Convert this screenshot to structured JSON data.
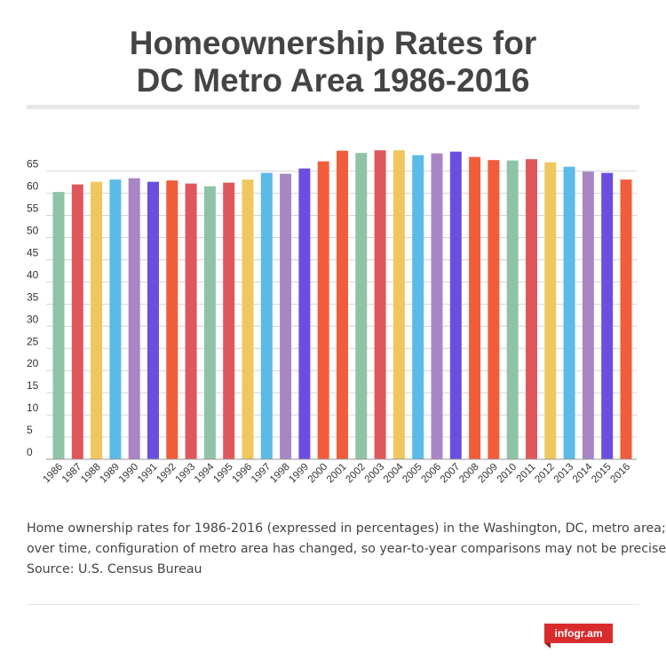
{
  "header": {
    "title_line1": "Homeownership Rates for",
    "title_line2": "DC Metro Area 1986-2016"
  },
  "chart_data": {
    "type": "bar",
    "title": "Homeownership Rates for DC Metro Area 1986-2016",
    "xlabel": "",
    "ylabel": "",
    "ylim": [
      0,
      70
    ],
    "yticks": [
      0,
      5,
      10,
      15,
      20,
      25,
      30,
      35,
      40,
      45,
      50,
      55,
      60,
      65
    ],
    "grid": true,
    "legend": "none",
    "categories": [
      "1986",
      "1987",
      "1988",
      "1989",
      "1990",
      "1991",
      "1992",
      "1993",
      "1994",
      "1995",
      "1996",
      "1997",
      "1998",
      "1999",
      "2000",
      "2001",
      "2002",
      "2003",
      "2004",
      "2005",
      "2006",
      "2007",
      "2008",
      "2009",
      "2010",
      "2011",
      "2012",
      "2013",
      "2014",
      "2015",
      "2016"
    ],
    "values": [
      60.3,
      62.0,
      62.6,
      63.1,
      63.4,
      62.6,
      62.9,
      62.2,
      61.6,
      62.4,
      63.1,
      64.6,
      64.4,
      65.6,
      67.2,
      69.6,
      69.1,
      69.7,
      69.7,
      68.6,
      69.0,
      69.4,
      68.2,
      67.5,
      67.4,
      67.7,
      67.0,
      66.0,
      64.9,
      64.6,
      63.1
    ],
    "colors": [
      "#8ec3a7",
      "#e0575b",
      "#efc75e",
      "#5bbae6",
      "#a886c3",
      "#6b4ee0",
      "#f15d3b",
      "#e0575b",
      "#8ec3a7",
      "#e0575b",
      "#efc75e",
      "#5bbae6",
      "#a886c3",
      "#6b4ee0",
      "#f15d3b",
      "#f15d3b",
      "#8ec3a7",
      "#e0575b",
      "#efc75e",
      "#5bbae6",
      "#a886c3",
      "#6b4ee0",
      "#f15d3b",
      "#f15d3b",
      "#8ec3a7",
      "#e0575b",
      "#efc75e",
      "#5bbae6",
      "#a886c3",
      "#6b4ee0",
      "#f15d3b"
    ]
  },
  "caption": {
    "line1": "Home ownership rates for 1986-2016 (expressed in percentages) in the Washington, DC, metro area;",
    "line2": "over time, configuration of metro area has changed, so year-to-year comparisons may not be precise",
    "line3": "Source: U.S. Census Bureau"
  },
  "footer": {
    "brand": "infogr.am"
  }
}
